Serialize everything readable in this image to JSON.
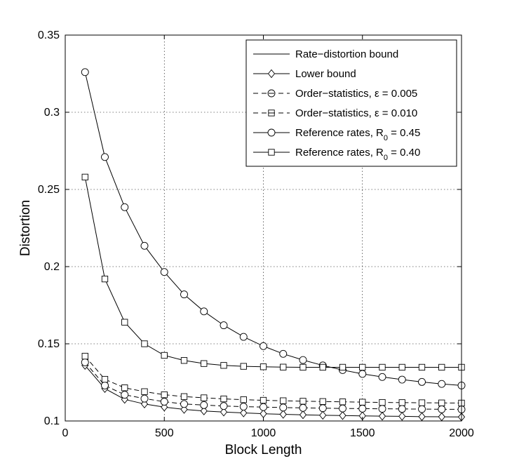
{
  "chart_data": {
    "type": "line",
    "title": "",
    "xlabel": "Block Length",
    "ylabel": "Distortion",
    "xlim": [
      0,
      2000
    ],
    "ylim": [
      0.1,
      0.35
    ],
    "xticks": [
      0,
      500,
      1000,
      1500,
      2000
    ],
    "xtick_labels": [
      "0",
      "500",
      "1000",
      "1500",
      "2000"
    ],
    "yticks": [
      0.1,
      0.15,
      0.2,
      0.25,
      0.3,
      0.35
    ],
    "ytick_labels": [
      "0.1",
      "0.15",
      "0.2",
      "0.25",
      "0.3",
      "0.35"
    ],
    "grid": true,
    "legend_position": "top-right",
    "x": [
      100,
      200,
      300,
      400,
      500,
      600,
      700,
      800,
      900,
      1000,
      1100,
      1200,
      1300,
      1400,
      1500,
      1600,
      1700,
      1800,
      1900,
      2000
    ],
    "series": [
      {
        "name": "Rate−distortion bound",
        "marker": "none",
        "linestyle": "solid",
        "values": [
          0.1,
          0.1,
          0.1,
          0.1,
          0.1,
          0.1,
          0.1,
          0.1,
          0.1,
          0.1,
          0.1,
          0.1,
          0.1,
          0.1,
          0.1,
          0.1,
          0.1,
          0.1,
          0.1,
          0.1
        ]
      },
      {
        "name": "Lower bound",
        "marker": "diamond",
        "linestyle": "solid",
        "values": [
          0.136,
          0.121,
          0.114,
          0.111,
          0.109,
          0.1075,
          0.1065,
          0.1058,
          0.1052,
          0.1047,
          0.1043,
          0.104,
          0.1037,
          0.1035,
          0.1033,
          0.1031,
          0.103,
          0.1028,
          0.1027,
          0.1026
        ]
      },
      {
        "name": "Order−statistics, ε = 0.005",
        "marker": "circle-dash",
        "linestyle": "dashed",
        "values": [
          0.138,
          0.123,
          0.117,
          0.1145,
          0.1125,
          0.111,
          0.1103,
          0.1097,
          0.1093,
          0.109,
          0.1087,
          0.1085,
          0.1083,
          0.1081,
          0.108,
          0.1079,
          0.1078,
          0.1077,
          0.1076,
          0.1075
        ]
      },
      {
        "name": "Order−statistics, ε = 0.010",
        "marker": "square-dash",
        "linestyle": "dashed",
        "values": [
          0.142,
          0.127,
          0.1215,
          0.119,
          0.117,
          0.1158,
          0.115,
          0.1143,
          0.1138,
          0.1134,
          0.1131,
          0.1128,
          0.1126,
          0.1124,
          0.1122,
          0.112,
          0.1119,
          0.1118,
          0.1117,
          0.1116
        ]
      },
      {
        "name": "Reference rates, R",
        "name_sub": "0",
        "name_suffix": " = 0.45",
        "marker": "circle",
        "linestyle": "solid",
        "values": [
          0.326,
          0.271,
          0.2385,
          0.2135,
          0.1965,
          0.182,
          0.171,
          0.162,
          0.1545,
          0.1485,
          0.1435,
          0.1395,
          0.136,
          0.133,
          0.1305,
          0.1285,
          0.1268,
          0.1253,
          0.124,
          0.123
        ]
      },
      {
        "name": "Reference rates, R",
        "name_sub": "0",
        "name_suffix": " = 0.40",
        "marker": "square",
        "linestyle": "solid",
        "values": [
          0.258,
          0.192,
          0.164,
          0.15,
          0.1425,
          0.1392,
          0.1372,
          0.136,
          0.1354,
          0.1351,
          0.1349,
          0.1348,
          0.1348,
          0.1348,
          0.1348,
          0.1348,
          0.1348,
          0.1348,
          0.1348,
          0.1348
        ]
      }
    ]
  }
}
